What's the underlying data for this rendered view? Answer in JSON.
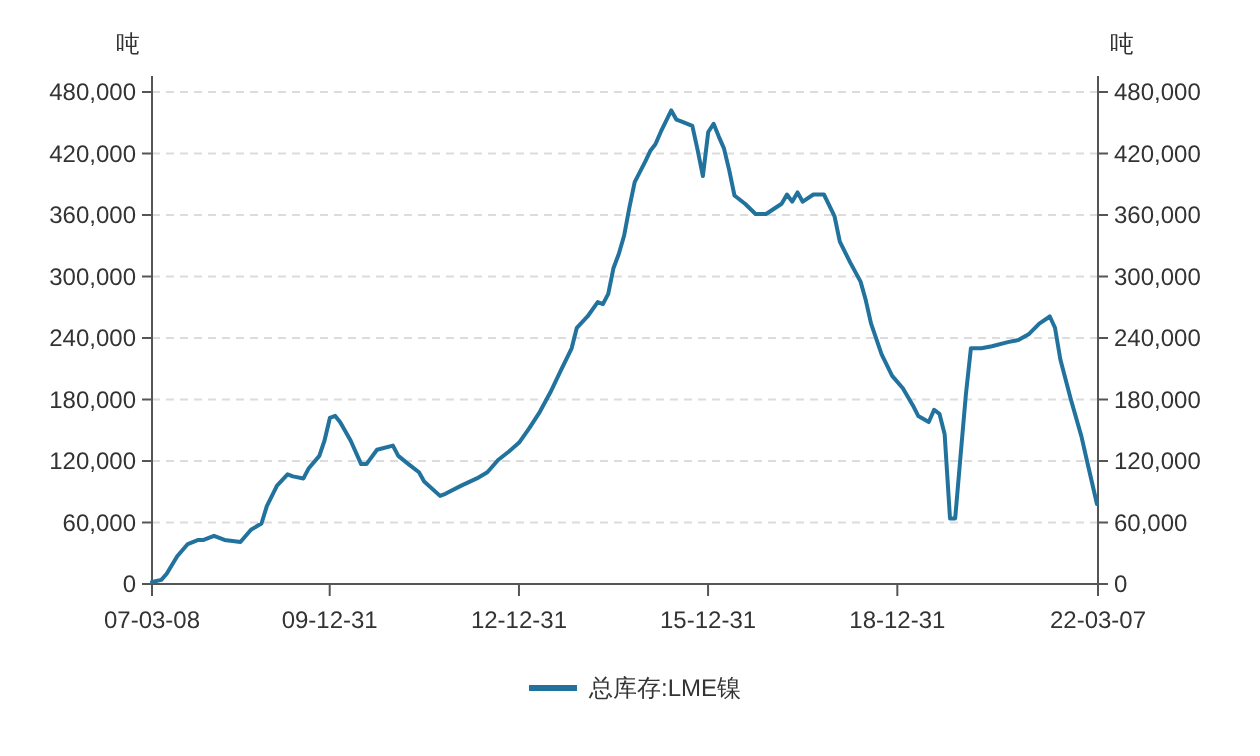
{
  "chart_data": {
    "type": "line",
    "ylabel": "吨",
    "y2label": "吨",
    "xlim": [
      "2007-03-08",
      "2022-03-07"
    ],
    "xticks": [
      {
        "value": "2007-03-08",
        "label": "07-03-08"
      },
      {
        "value": "2009-12-31",
        "label": "09-12-31"
      },
      {
        "value": "2012-12-31",
        "label": "12-12-31"
      },
      {
        "value": "2015-12-31",
        "label": "15-12-31"
      },
      {
        "value": "2018-12-31",
        "label": "18-12-31"
      },
      {
        "value": "2022-03-07",
        "label": "22-03-07"
      }
    ],
    "ylim": [
      0,
      480000
    ],
    "yticks": [
      {
        "value": 0,
        "label": "0"
      },
      {
        "value": 60000,
        "label": "60,000"
      },
      {
        "value": 120000,
        "label": "120,000"
      },
      {
        "value": 180000,
        "label": "180,000"
      },
      {
        "value": 240000,
        "label": "240,000"
      },
      {
        "value": 300000,
        "label": "300,000"
      },
      {
        "value": 360000,
        "label": "360,000"
      },
      {
        "value": 420000,
        "label": "420,000"
      },
      {
        "value": 480000,
        "label": "480,000"
      }
    ],
    "y2lim": [
      0,
      480000
    ],
    "y2ticks": [
      {
        "value": 0,
        "label": "0"
      },
      {
        "value": 60000,
        "label": "60,000"
      },
      {
        "value": 120000,
        "label": "120,000"
      },
      {
        "value": 180000,
        "label": "180,000"
      },
      {
        "value": 240000,
        "label": "240,000"
      },
      {
        "value": 300000,
        "label": "300,000"
      },
      {
        "value": 360000,
        "label": "360,000"
      },
      {
        "value": 420000,
        "label": "420,000"
      },
      {
        "value": 480000,
        "label": "480,000"
      }
    ],
    "grid": "y",
    "legend": "bottom",
    "marker": "none",
    "line_style": "solid",
    "series": [
      {
        "name": "总库存:LME镍",
        "color": "#21739e",
        "x": [
          "2007-03-08",
          "2007-05",
          "2007-06",
          "2007-08",
          "2007-10",
          "2007-12",
          "2008-01",
          "2008-03",
          "2008-05",
          "2008-08",
          "2008-10",
          "2008-12",
          "2009-01",
          "2009-03",
          "2009-05",
          "2009-06",
          "2009-08",
          "2009-09",
          "2009-11",
          "2009-12",
          "2010-01",
          "2010-02",
          "2010-03",
          "2010-05",
          "2010-07",
          "2010-08",
          "2010-10",
          "2011-01",
          "2011-02",
          "2011-04",
          "2011-06",
          "2011-07",
          "2011-10",
          "2011-11",
          "2012-02",
          "2012-05",
          "2012-07",
          "2012-09",
          "2012-11",
          "2013-01",
          "2013-03",
          "2013-05",
          "2013-07",
          "2013-09",
          "2013-11",
          "2013-12",
          "2014-02",
          "2014-04",
          "2014-05",
          "2014-06",
          "2014-07",
          "2014-08",
          "2014-09",
          "2014-10",
          "2014-11",
          "2015-01",
          "2015-02",
          "2015-03",
          "2015-04",
          "2015-06",
          "2015-07",
          "2015-08",
          "2015-10",
          "2015-11",
          "2015-12",
          "2016-01",
          "2016-02",
          "2016-03",
          "2016-04",
          "2016-05",
          "2016-06",
          "2016-08",
          "2016-10",
          "2016-12",
          "2017-03",
          "2017-04",
          "2017-05",
          "2017-06",
          "2017-07",
          "2017-09",
          "2017-11",
          "2018-01",
          "2018-02",
          "2018-04",
          "2018-06",
          "2018-07",
          "2018-08",
          "2018-10",
          "2018-12",
          "2019-02",
          "2019-04",
          "2019-05",
          "2019-07",
          "2019-08",
          "2019-09",
          "2019-10",
          "2019-11",
          "2019-12",
          "2020-01",
          "2020-02",
          "2020-03",
          "2020-05",
          "2020-07",
          "2020-10",
          "2020-12",
          "2021-02",
          "2021-04",
          "2021-06",
          "2021-07",
          "2021-08",
          "2021-10",
          "2021-12",
          "2022-01",
          "2022-03"
        ],
        "values": [
          2000,
          4000,
          10000,
          27000,
          39000,
          43000,
          43000,
          47000,
          43000,
          41000,
          53000,
          59000,
          76000,
          96000,
          107000,
          105000,
          103000,
          113000,
          125000,
          140000,
          162000,
          164000,
          158000,
          140000,
          117000,
          117000,
          131000,
          135000,
          125000,
          117000,
          109000,
          100000,
          86000,
          88000,
          96000,
          103000,
          109000,
          121000,
          129000,
          138000,
          152000,
          168000,
          187000,
          209000,
          230000,
          250000,
          261000,
          275000,
          273000,
          283000,
          308000,
          322000,
          340000,
          367000,
          392000,
          412000,
          423000,
          429000,
          441000,
          462000,
          453000,
          451000,
          447000,
          423000,
          398000,
          441000,
          449000,
          437000,
          425000,
          404000,
          379000,
          371000,
          361000,
          361000,
          371000,
          380000,
          373000,
          382000,
          373000,
          380000,
          380000,
          359000,
          334000,
          314000,
          295000,
          277000,
          254000,
          224000,
          203000,
          191000,
          174000,
          164000,
          158000,
          170000,
          166000,
          146000,
          64000,
          64000,
          125000,
          185000,
          230000,
          230000,
          232000,
          236000,
          238000,
          244000,
          254000,
          261000,
          250000,
          219000,
          180000,
          144000,
          121000,
          78000
        ]
      }
    ]
  }
}
